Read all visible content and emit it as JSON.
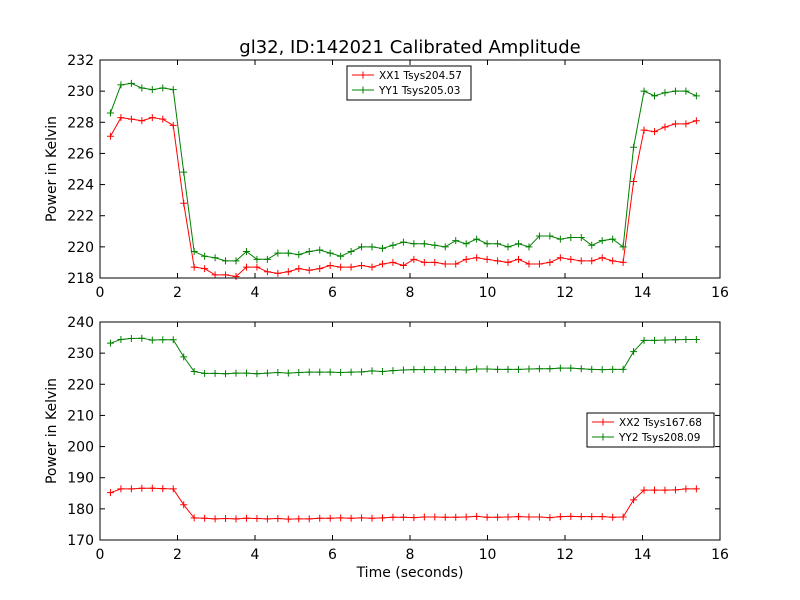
{
  "figure": {
    "title": "gl32, ID:142021 Calibrated Amplitude"
  },
  "chart_data": [
    {
      "type": "line",
      "title": "gl32, ID:142021 Calibrated Amplitude",
      "xlabel": "",
      "ylabel": "Power in Kelvin",
      "xlim": [
        0,
        16
      ],
      "ylim": [
        218,
        232
      ],
      "xticks": [
        0,
        2,
        4,
        6,
        8,
        10,
        12,
        14,
        16
      ],
      "yticks": [
        218,
        220,
        222,
        224,
        226,
        228,
        230,
        232
      ],
      "legend_position": "top-center",
      "grid": false,
      "series": [
        {
          "name": "XX1 Tsys204.57",
          "color": "#ff0000",
          "x": [
            0.27,
            0.54,
            0.81,
            1.08,
            1.35,
            1.62,
            1.89,
            2.16,
            2.43,
            2.7,
            2.97,
            3.24,
            3.51,
            3.78,
            4.05,
            4.32,
            4.59,
            4.86,
            5.13,
            5.4,
            5.67,
            5.94,
            6.21,
            6.48,
            6.75,
            7.02,
            7.29,
            7.56,
            7.83,
            8.1,
            8.37,
            8.64,
            8.91,
            9.18,
            9.45,
            9.72,
            9.99,
            10.26,
            10.53,
            10.8,
            11.07,
            11.34,
            11.61,
            11.88,
            12.15,
            12.42,
            12.69,
            12.96,
            13.23,
            13.5,
            13.77,
            14.04,
            14.31,
            14.58,
            14.85,
            15.12,
            15.39
          ],
          "values": [
            227.1,
            228.3,
            228.2,
            228.1,
            228.3,
            228.2,
            227.8,
            222.8,
            218.7,
            218.6,
            218.2,
            218.2,
            218.1,
            218.7,
            218.7,
            218.4,
            218.3,
            218.4,
            218.6,
            218.5,
            218.6,
            218.8,
            218.7,
            218.7,
            218.8,
            218.7,
            218.9,
            219.0,
            218.8,
            219.2,
            219.0,
            219.0,
            218.9,
            218.9,
            219.2,
            219.3,
            219.2,
            219.1,
            219.0,
            219.2,
            218.9,
            218.9,
            219.0,
            219.3,
            219.2,
            219.1,
            219.1,
            219.3,
            219.1,
            219.0,
            224.2,
            227.5,
            227.4,
            227.7,
            227.9,
            227.9,
            228.1
          ]
        },
        {
          "name": "YY1 Tsys205.03",
          "color": "#008000",
          "x": [
            0.27,
            0.54,
            0.81,
            1.08,
            1.35,
            1.62,
            1.89,
            2.16,
            2.43,
            2.7,
            2.97,
            3.24,
            3.51,
            3.78,
            4.05,
            4.32,
            4.59,
            4.86,
            5.13,
            5.4,
            5.67,
            5.94,
            6.21,
            6.48,
            6.75,
            7.02,
            7.29,
            7.56,
            7.83,
            8.1,
            8.37,
            8.64,
            8.91,
            9.18,
            9.45,
            9.72,
            9.99,
            10.26,
            10.53,
            10.8,
            11.07,
            11.34,
            11.61,
            11.88,
            12.15,
            12.42,
            12.69,
            12.96,
            13.23,
            13.5,
            13.77,
            14.04,
            14.31,
            14.58,
            14.85,
            15.12,
            15.39
          ],
          "values": [
            228.6,
            230.4,
            230.5,
            230.2,
            230.1,
            230.2,
            230.1,
            224.8,
            219.7,
            219.4,
            219.3,
            219.1,
            219.1,
            219.7,
            219.2,
            219.2,
            219.6,
            219.6,
            219.5,
            219.7,
            219.8,
            219.6,
            219.4,
            219.7,
            220.0,
            220.0,
            219.9,
            220.1,
            220.3,
            220.2,
            220.2,
            220.1,
            220.0,
            220.4,
            220.2,
            220.5,
            220.2,
            220.2,
            220.0,
            220.2,
            220.0,
            220.7,
            220.7,
            220.5,
            220.6,
            220.6,
            220.1,
            220.4,
            220.5,
            220.0,
            226.4,
            230.0,
            229.7,
            229.9,
            230.0,
            230.0,
            229.7
          ]
        }
      ]
    },
    {
      "type": "line",
      "title": "",
      "xlabel": "Time (seconds)",
      "ylabel": "Power in Kelvin",
      "xlim": [
        0,
        16
      ],
      "ylim": [
        170,
        240
      ],
      "xticks": [
        0,
        2,
        4,
        6,
        8,
        10,
        12,
        14,
        16
      ],
      "yticks": [
        170,
        180,
        190,
        200,
        210,
        220,
        230,
        240
      ],
      "legend_position": "center-right",
      "grid": false,
      "series": [
        {
          "name": "XX2 Tsys167.68",
          "color": "#ff0000",
          "x": [
            0.27,
            0.54,
            0.81,
            1.08,
            1.35,
            1.62,
            1.89,
            2.16,
            2.43,
            2.7,
            2.97,
            3.24,
            3.51,
            3.78,
            4.05,
            4.32,
            4.59,
            4.86,
            5.13,
            5.4,
            5.67,
            5.94,
            6.21,
            6.48,
            6.75,
            7.02,
            7.29,
            7.56,
            7.83,
            8.1,
            8.37,
            8.64,
            8.91,
            9.18,
            9.45,
            9.72,
            9.99,
            10.26,
            10.53,
            10.8,
            11.07,
            11.34,
            11.61,
            11.88,
            12.15,
            12.42,
            12.69,
            12.96,
            13.23,
            13.5,
            13.77,
            14.04,
            14.31,
            14.58,
            14.85,
            15.12,
            15.39
          ],
          "values": [
            185.2,
            186.4,
            186.4,
            186.6,
            186.6,
            186.5,
            186.4,
            181.3,
            177.1,
            177.0,
            176.8,
            176.9,
            176.8,
            177.0,
            176.9,
            176.8,
            176.9,
            176.7,
            176.8,
            176.8,
            177.0,
            177.0,
            177.1,
            177.0,
            177.1,
            177.0,
            177.1,
            177.3,
            177.3,
            177.2,
            177.4,
            177.4,
            177.3,
            177.3,
            177.4,
            177.6,
            177.3,
            177.3,
            177.4,
            177.5,
            177.4,
            177.4,
            177.2,
            177.5,
            177.6,
            177.5,
            177.5,
            177.5,
            177.3,
            177.4,
            182.9,
            186.0,
            186.0,
            186.0,
            186.1,
            186.4,
            186.4
          ]
        },
        {
          "name": "YY2 Tsys208.09",
          "color": "#008000",
          "x": [
            0.27,
            0.54,
            0.81,
            1.08,
            1.35,
            1.62,
            1.89,
            2.16,
            2.43,
            2.7,
            2.97,
            3.24,
            3.51,
            3.78,
            4.05,
            4.32,
            4.59,
            4.86,
            5.13,
            5.4,
            5.67,
            5.94,
            6.21,
            6.48,
            6.75,
            7.02,
            7.29,
            7.56,
            7.83,
            8.1,
            8.37,
            8.64,
            8.91,
            9.18,
            9.45,
            9.72,
            9.99,
            10.26,
            10.53,
            10.8,
            11.07,
            11.34,
            11.61,
            11.88,
            12.15,
            12.42,
            12.69,
            12.96,
            13.23,
            13.5,
            13.77,
            14.04,
            14.31,
            14.58,
            14.85,
            15.12,
            15.39
          ],
          "values": [
            233.2,
            234.4,
            234.7,
            234.8,
            234.2,
            234.3,
            234.3,
            228.8,
            224.1,
            223.5,
            223.5,
            223.4,
            223.6,
            223.6,
            223.4,
            223.6,
            223.8,
            223.6,
            223.8,
            223.9,
            223.9,
            223.9,
            223.8,
            223.9,
            224.0,
            224.3,
            224.1,
            224.4,
            224.6,
            224.7,
            224.7,
            224.7,
            224.7,
            224.7,
            224.6,
            224.9,
            224.9,
            224.8,
            224.8,
            224.8,
            224.9,
            225.0,
            225.0,
            225.2,
            225.2,
            225.0,
            224.8,
            224.7,
            224.8,
            224.8,
            230.5,
            234.1,
            234.1,
            234.2,
            234.3,
            234.4,
            234.4
          ]
        }
      ]
    }
  ]
}
